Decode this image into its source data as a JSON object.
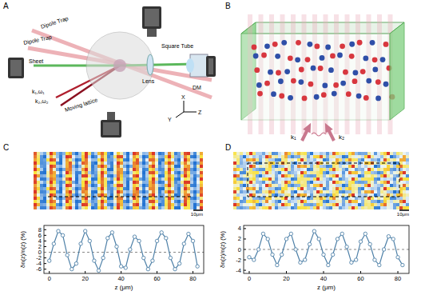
{
  "panel_labels": [
    "A",
    "B",
    "C",
    "D"
  ],
  "setup": {
    "labels": [
      "Dipole Trap",
      "Dipole Trap",
      "Sheet",
      "k₁,ω₁",
      "k₂,ω₂",
      "Moving lattice",
      "Lens",
      "Square Tube",
      "DM"
    ],
    "axes": [
      "X",
      "Y",
      "Z"
    ]
  },
  "schematic": {
    "labels": [
      "k₁",
      "k₂"
    ]
  },
  "images": [
    {
      "scale_bar": "10μm"
    },
    {
      "scale_bar": "10μm"
    }
  ],
  "chart_data": [
    {
      "type": "line",
      "xlabel": "z (μm)",
      "ylabel": "δn(z)/n(z) (%)",
      "x": [
        0,
        2.5,
        5,
        7.5,
        10,
        12.5,
        15,
        17.5,
        20,
        22.5,
        25,
        27.5,
        30,
        32.5,
        35,
        37.5,
        40,
        42.5,
        45,
        47.5,
        50,
        52.5,
        55,
        57.5,
        60,
        62.5,
        65,
        67.5,
        70,
        72.5,
        75,
        77.5,
        80,
        82.5
      ],
      "values": [
        -3,
        3,
        7.5,
        6,
        -1,
        -6,
        -4,
        3,
        7.5,
        4,
        -3,
        -6.5,
        -2,
        5,
        7,
        2,
        -5,
        -5.5,
        1,
        5.5,
        4,
        -2,
        -6,
        -3,
        4,
        7,
        5,
        -2,
        -6,
        -4,
        3,
        6.5,
        4,
        -5
      ],
      "color": "#4f81a8",
      "marker": "circle",
      "line_style": "solid",
      "xlim": [
        -3,
        86
      ],
      "xticks": [
        0,
        20,
        40,
        60,
        80
      ],
      "ylim": [
        -7.5,
        9.5
      ],
      "yticks": [
        -6,
        -4,
        -2,
        0,
        2,
        4,
        6,
        8
      ],
      "hline": 0,
      "grid": false
    },
    {
      "type": "line",
      "xlabel": "z (μm)",
      "ylabel": "δn(z)/n(z) (%)",
      "x": [
        0,
        2.5,
        5,
        7.5,
        10,
        12.5,
        15,
        17.5,
        20,
        22.5,
        25,
        27.5,
        30,
        32.5,
        35,
        37.5,
        40,
        42.5,
        45,
        47.5,
        50,
        52.5,
        55,
        57.5,
        60,
        62.5,
        65,
        67.5,
        70,
        72.5,
        75,
        77.5,
        80,
        82.5
      ],
      "values": [
        -1.5,
        -2,
        0,
        3,
        2,
        -1,
        -3,
        -1,
        2,
        3,
        0,
        -2.5,
        -2,
        1,
        3.5,
        2,
        -1,
        -3,
        -1,
        2,
        3,
        0.5,
        -2.5,
        -2,
        1.5,
        3,
        1,
        -2,
        -3,
        0,
        2.5,
        2,
        -1.5,
        -3
      ],
      "color": "#4f81a8",
      "marker": "circle",
      "line_style": "solid",
      "xlim": [
        -3,
        86
      ],
      "xticks": [
        0,
        20,
        40,
        60,
        80
      ],
      "ylim": [
        -4.6,
        4.6
      ],
      "yticks": [
        -4,
        -2,
        0,
        2,
        4
      ],
      "hline": 0,
      "grid": false
    }
  ]
}
